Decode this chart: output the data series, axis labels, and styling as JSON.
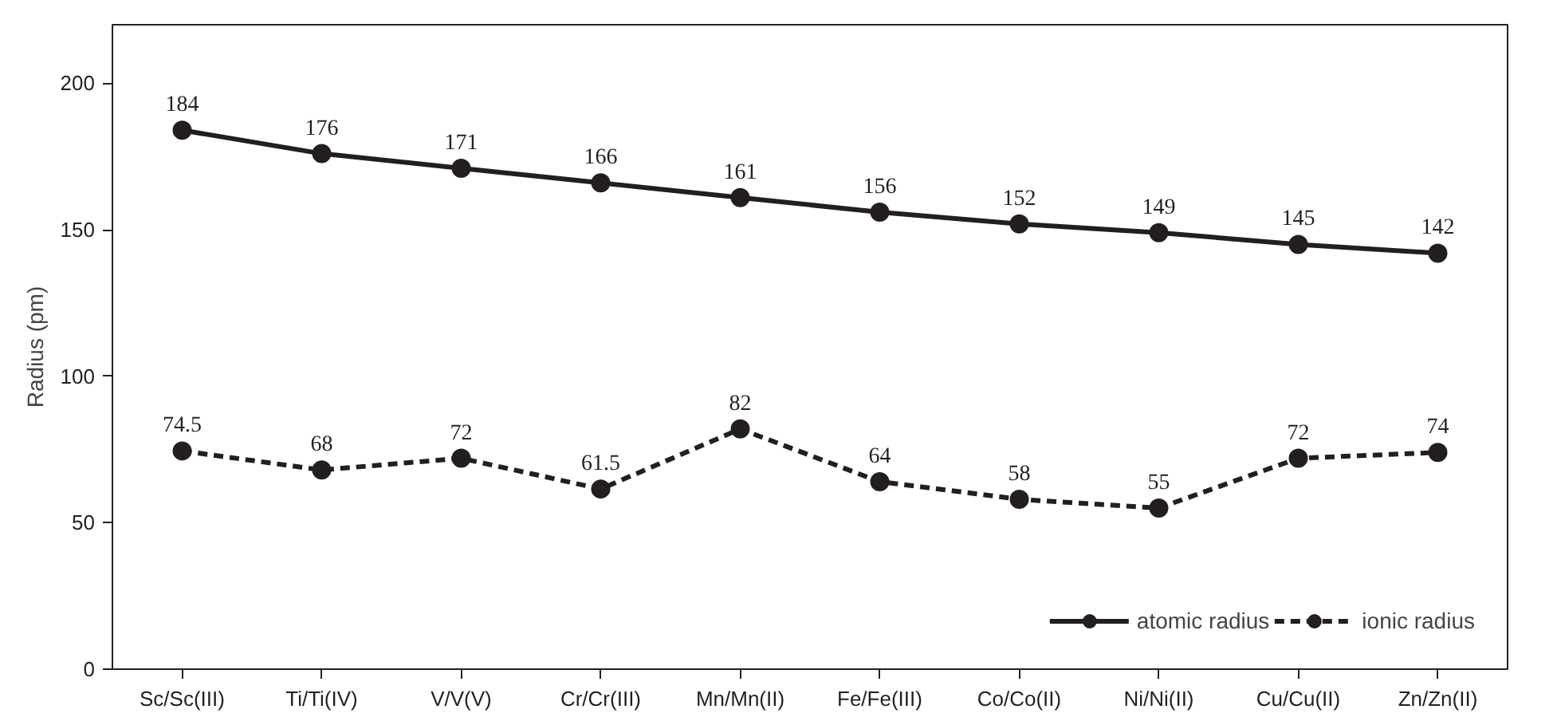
{
  "chart_data": {
    "type": "line",
    "ylabel": "Radius (pm)",
    "categories": [
      "Sc/Sc(III)",
      "Ti/Ti(IV)",
      "V/V(V)",
      "Cr/Cr(III)",
      "Mn/Mn(II)",
      "Fe/Fe(III)",
      "Co/Co(II)",
      "Ni/Ni(II)",
      "Cu/Cu(II)",
      "Zn/Zn(II)"
    ],
    "series": [
      {
        "name": "atomic radius",
        "color": "#231f20",
        "values": [
          184,
          176,
          171,
          166,
          161,
          156,
          152,
          149,
          145,
          142
        ],
        "line_style": "solid"
      },
      {
        "name": "ionic radius",
        "color": "#231f20",
        "values": [
          74.5,
          68,
          72,
          61.5,
          82,
          64,
          58,
          55,
          72,
          74
        ],
        "line_style": "dashed"
      }
    ],
    "ylim": [
      0,
      220
    ],
    "yticks": [
      0,
      50,
      100,
      150,
      200
    ],
    "data_labels": true,
    "marker": "circle",
    "legend": "bottom right",
    "grid": false
  }
}
